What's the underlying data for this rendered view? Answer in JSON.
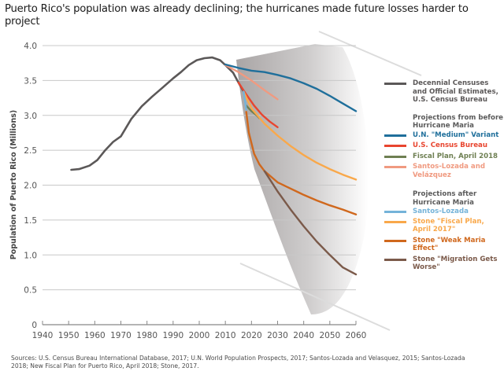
{
  "title": "Puerto Rico's population was already declining; the hurricanes made future losses harder to project",
  "sources": "Sources: U.S. Census Bureau International Database, 2017; U.N. World Population Prospects, 2017; Santos-Lozada and Velasquez, 2015; Santos-Lozada 2018; New Fiscal Plan for Puerto Rico, April 2018; Stone, 2017.",
  "legend": {
    "historical_label": "Decennial Censuses and Official Estimates, U.S. Census Bureau",
    "before_heading": "Projections from before Hurricane Maria",
    "after_heading": "Projections after Hurricane Maria"
  },
  "chart_data": {
    "type": "line",
    "title": "Puerto Rico's population was already declining; the hurricanes made future losses harder to project",
    "xlabel": "",
    "ylabel": "Population of Puerto Rico (Millions)",
    "xlim": [
      1940,
      2060
    ],
    "ylim": [
      0,
      4.0
    ],
    "xticks": [
      1940,
      1950,
      1960,
      1970,
      1980,
      1990,
      2000,
      2010,
      2020,
      2030,
      2040,
      2050,
      2060
    ],
    "yticks": [
      0,
      0.5,
      1.0,
      1.5,
      2.0,
      2.5,
      3.0,
      3.5,
      4.0
    ],
    "ytick_labels": [
      "0",
      "0.5",
      "1.0",
      "1.5",
      "2.0",
      "2.5",
      "3.0",
      "3.5",
      "4.0"
    ],
    "grid": "horizontal",
    "legend_position": "right",
    "series": [
      {
        "name": "Decennial Censuses and Official Estimates, U.S. Census Bureau",
        "group": "historical",
        "color": "#5b5858",
        "x": [
          1951,
          1954,
          1958,
          1961,
          1964,
          1967,
          1970,
          1974,
          1978,
          1982,
          1986,
          1990,
          1993,
          1996,
          1999,
          2002,
          2005,
          2008,
          2010,
          2013,
          2015,
          2017
        ],
        "y": [
          2.22,
          2.23,
          2.28,
          2.36,
          2.5,
          2.62,
          2.7,
          2.95,
          3.13,
          3.27,
          3.4,
          3.53,
          3.62,
          3.72,
          3.79,
          3.82,
          3.83,
          3.79,
          3.72,
          3.61,
          3.47,
          3.34
        ]
      },
      {
        "name": "U.N. \"Medium\" Variant",
        "group": "before",
        "color": "#1f6f9b",
        "x": [
          2010,
          2015,
          2020,
          2025,
          2030,
          2035,
          2040,
          2045,
          2050,
          2055,
          2060
        ],
        "y": [
          3.73,
          3.68,
          3.64,
          3.62,
          3.58,
          3.53,
          3.46,
          3.38,
          3.28,
          3.17,
          3.06
        ]
      },
      {
        "name": "U.S. Census Bureau",
        "group": "before",
        "color": "#e8452f",
        "x": [
          2015,
          2018,
          2021,
          2024,
          2027,
          2030
        ],
        "y": [
          3.47,
          3.3,
          3.14,
          3.01,
          2.91,
          2.83
        ]
      },
      {
        "name": "Fiscal Plan, April 2018",
        "group": "before",
        "color": "#6e7f52",
        "x": [
          2018,
          2020,
          2022,
          2023
        ],
        "y": [
          3.14,
          3.06,
          3.0,
          2.96
        ]
      },
      {
        "name": "Santos-Lozada and Velázquez",
        "group": "before",
        "color": "#f09a80",
        "x": [
          2010,
          2015,
          2020,
          2025,
          2030
        ],
        "y": [
          3.72,
          3.62,
          3.5,
          3.36,
          3.23
        ]
      },
      {
        "name": "Santos-Lozada",
        "group": "after",
        "color": "#74b3d9",
        "x": [
          2017,
          2018
        ],
        "y": [
          3.34,
          3.08
        ]
      },
      {
        "name": "Stone \"Fiscal Plan, April 2017\"",
        "group": "after",
        "color": "#f9a84a",
        "x": [
          2017,
          2020,
          2025,
          2030,
          2035,
          2040,
          2045,
          2050,
          2055,
          2060
        ],
        "y": [
          3.34,
          3.1,
          2.88,
          2.71,
          2.56,
          2.43,
          2.32,
          2.23,
          2.15,
          2.08
        ]
      },
      {
        "name": "Stone \"Weak Maria Effect\"",
        "group": "after",
        "color": "#d0681d",
        "x": [
          2018,
          2019,
          2021,
          2023,
          2025,
          2030,
          2035,
          2040,
          2045,
          2050,
          2055,
          2060
        ],
        "y": [
          3.05,
          2.75,
          2.45,
          2.3,
          2.2,
          2.04,
          1.95,
          1.86,
          1.78,
          1.71,
          1.65,
          1.58
        ]
      },
      {
        "name": "Stone \"Migration Gets Worse\"",
        "group": "after",
        "color": "#7b5a4a",
        "x": [
          2025,
          2030,
          2035,
          2040,
          2045,
          2050,
          2055,
          2060
        ],
        "y": [
          2.2,
          1.91,
          1.65,
          1.41,
          1.19,
          1.0,
          0.82,
          0.72
        ]
      }
    ]
  }
}
